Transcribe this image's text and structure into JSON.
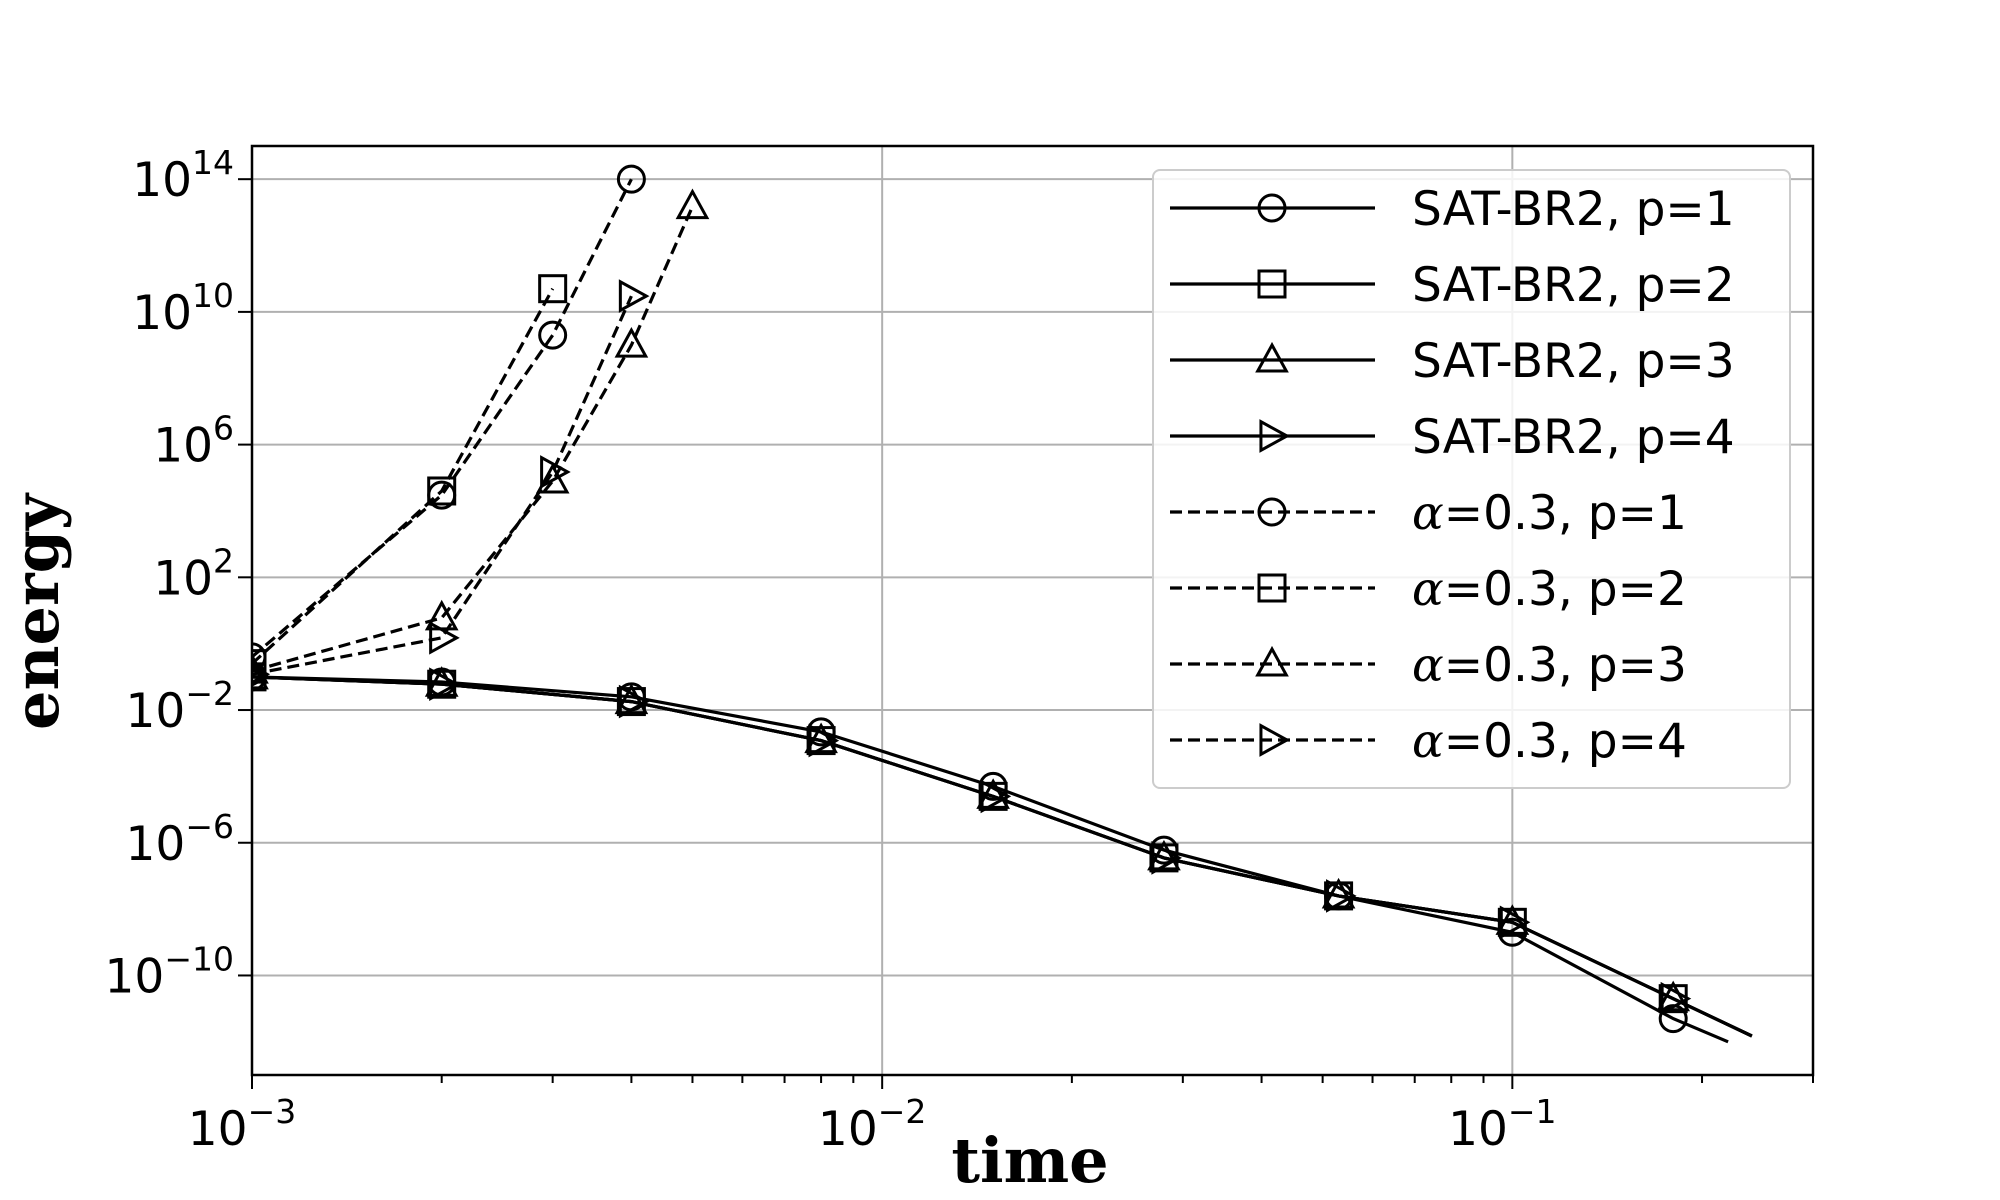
{
  "chart_data": {
    "type": "line",
    "xlabel": "time",
    "ylabel": "energy",
    "xscale": "log",
    "yscale": "log",
    "xlim": [
      0.001,
      0.3
    ],
    "ylim": [
      1e-13,
      1000000000000000.0
    ],
    "grid": true,
    "legend_position": "top-right",
    "x_ticks": [
      {
        "base": "10",
        "exp": "−3",
        "value": 0.001
      },
      {
        "base": "10",
        "exp": "−2",
        "value": 0.01
      },
      {
        "base": "10",
        "exp": "−1",
        "value": 0.1
      }
    ],
    "y_ticks": [
      {
        "base": "10",
        "exp": "14",
        "value": 100000000000000.0
      },
      {
        "base": "10",
        "exp": "10",
        "value": 10000000000.0
      },
      {
        "base": "10",
        "exp": "6",
        "value": 1000000.0
      },
      {
        "base": "10",
        "exp": "2",
        "value": 100.0
      },
      {
        "base": "10",
        "exp": "−2",
        "value": 0.01
      },
      {
        "base": "10",
        "exp": "−6",
        "value": 1e-06
      },
      {
        "base": "10",
        "exp": "−10",
        "value": 1e-10
      }
    ],
    "series": [
      {
        "name": "SAT-BR2, p=1",
        "prefix": "SAT-BR2",
        "suffix": ", p=1",
        "linestyle": "solid",
        "marker": "circle",
        "x": [
          0.001,
          0.002,
          0.004,
          0.008,
          0.015,
          0.028,
          0.053,
          0.1,
          0.18,
          0.22
        ],
        "y": [
          0.1,
          0.07,
          0.025,
          0.0022,
          5e-05,
          6e-07,
          2.5e-08,
          2e-09,
          5e-12,
          1e-12
        ],
        "marker_x": [
          0.001,
          0.002,
          0.004,
          0.008,
          0.015,
          0.028,
          0.053,
          0.1,
          0.18
        ],
        "marker_y": [
          0.1,
          0.07,
          0.025,
          0.0022,
          5e-05,
          6e-07,
          2.5e-08,
          2e-09,
          5e-12
        ]
      },
      {
        "name": "SAT-BR2, p=2",
        "prefix": "SAT-BR2",
        "suffix": ", p=2",
        "linestyle": "solid",
        "marker": "square",
        "x": [
          0.001,
          0.002,
          0.004,
          0.008,
          0.015,
          0.028,
          0.053,
          0.1,
          0.18,
          0.24
        ],
        "y": [
          0.1,
          0.06,
          0.018,
          0.0012,
          2.5e-05,
          3.5e-07,
          2.5e-08,
          4e-09,
          2e-11,
          1.5e-12
        ],
        "marker_x": [
          0.001,
          0.002,
          0.004,
          0.008,
          0.015,
          0.028,
          0.053,
          0.1,
          0.18
        ],
        "marker_y": [
          0.1,
          0.06,
          0.018,
          0.0012,
          2.5e-05,
          3.5e-07,
          2.5e-08,
          4e-09,
          2e-11
        ]
      },
      {
        "name": "SAT-BR2, p=3",
        "prefix": "SAT-BR2",
        "suffix": ", p=3",
        "linestyle": "solid",
        "marker": "triangle",
        "x": [
          0.001,
          0.002,
          0.004,
          0.008,
          0.015,
          0.028,
          0.053,
          0.1,
          0.18,
          0.24
        ],
        "y": [
          0.1,
          0.06,
          0.018,
          0.0012,
          2.5e-05,
          3.5e-07,
          2.5e-08,
          4e-09,
          2e-11,
          1.5e-12
        ],
        "marker_x": [
          0.001,
          0.002,
          0.004,
          0.008,
          0.015,
          0.028,
          0.053,
          0.1,
          0.18
        ],
        "marker_y": [
          0.1,
          0.06,
          0.018,
          0.0012,
          2.5e-05,
          3.5e-07,
          2.5e-08,
          4e-09,
          2e-11
        ]
      },
      {
        "name": "SAT-BR2, p=4",
        "prefix": "SAT-BR2",
        "suffix": ", p=4",
        "linestyle": "solid",
        "marker": "triangle-right",
        "x": [
          0.001,
          0.002,
          0.004,
          0.008,
          0.015,
          0.028,
          0.053,
          0.1,
          0.18,
          0.24
        ],
        "y": [
          0.1,
          0.06,
          0.018,
          0.0012,
          2.5e-05,
          3.5e-07,
          2.5e-08,
          4e-09,
          2e-11,
          1.5e-12
        ],
        "marker_x": [
          0.001,
          0.002,
          0.004,
          0.008,
          0.015,
          0.028,
          0.053,
          0.1,
          0.18
        ],
        "marker_y": [
          0.1,
          0.06,
          0.018,
          0.0012,
          2.5e-05,
          3.5e-07,
          2.5e-08,
          4e-09,
          2e-11
        ]
      },
      {
        "name": "α=0.3, p=1",
        "prefix": "α",
        "suffix": "=0.3, p=1",
        "linestyle": "dashed",
        "marker": "circle",
        "x": [
          0.001,
          0.002,
          0.003,
          0.004
        ],
        "y": [
          0.4,
          30000.0,
          2000000000.0,
          100000000000000.0
        ],
        "marker_x": [
          0.001,
          0.002,
          0.003,
          0.004
        ],
        "marker_y": [
          0.4,
          30000.0,
          2000000000.0,
          100000000000000.0
        ]
      },
      {
        "name": "α=0.3, p=2",
        "prefix": "α",
        "suffix": "=0.3, p=2",
        "linestyle": "dashed",
        "marker": "square",
        "x": [
          0.001,
          0.002,
          0.003
        ],
        "y": [
          0.25,
          40000.0,
          50000000000.0
        ],
        "marker_x": [
          0.001,
          0.002,
          0.003
        ],
        "marker_y": [
          0.25,
          40000.0,
          50000000000.0
        ]
      },
      {
        "name": "α=0.3, p=3",
        "prefix": "α",
        "suffix": "=0.3, p=3",
        "linestyle": "dashed",
        "marker": "triangle",
        "x": [
          0.001,
          0.002,
          0.003,
          0.004,
          0.005
        ],
        "y": [
          0.15,
          6,
          80000.0,
          1000000000.0,
          15000000000000.0
        ],
        "marker_x": [
          0.001,
          0.002,
          0.003,
          0.004,
          0.005
        ],
        "marker_y": [
          0.15,
          6,
          80000.0,
          1000000000.0,
          15000000000000.0
        ]
      },
      {
        "name": "α=0.3, p=4",
        "prefix": "α",
        "suffix": "=0.3, p=4",
        "linestyle": "dashed",
        "marker": "triangle-right",
        "x": [
          0.001,
          0.002,
          0.003,
          0.004
        ],
        "y": [
          0.12,
          1.5,
          150000.0,
          30000000000.0
        ],
        "marker_x": [
          0.001,
          0.002,
          0.003,
          0.004
        ],
        "marker_y": [
          0.12,
          1.5,
          150000.0,
          30000000000.0
        ]
      }
    ]
  }
}
